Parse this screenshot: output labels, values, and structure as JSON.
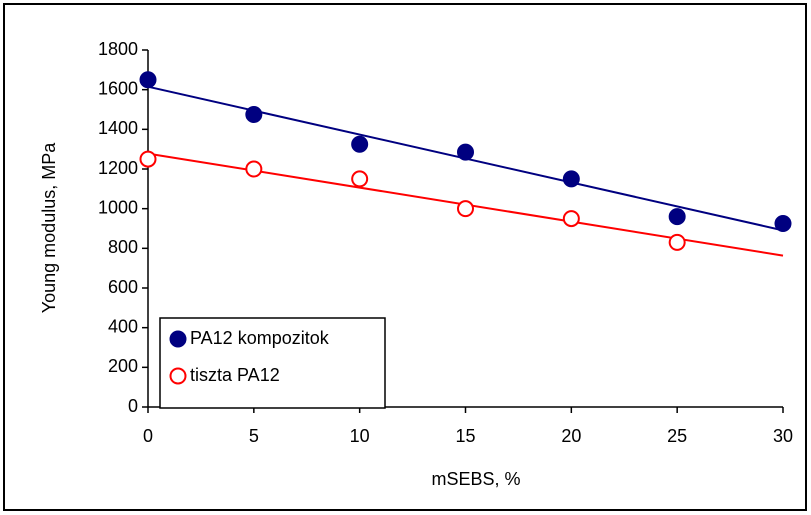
{
  "chart_data": {
    "type": "scatter",
    "x_label": "mSEBS, %",
    "y_label": "Young modulus, MPa",
    "xlim": [
      0,
      30
    ],
    "xticks": [
      0,
      5,
      10,
      15,
      20,
      25,
      30
    ],
    "ylim": [
      0,
      1800
    ],
    "yticks": [
      0,
      200,
      400,
      600,
      800,
      1000,
      1200,
      1400,
      1600,
      1800
    ],
    "grid": false,
    "legend": "lower left",
    "trendline": "linear",
    "series": [
      {
        "name": "PA12 kompozitok",
        "color": "#000080",
        "filled": true,
        "x": [
          0,
          5,
          10,
          15,
          20,
          25,
          30
        ],
        "values": [
          1650,
          1475,
          1325,
          1285,
          1150,
          960,
          925
        ]
      },
      {
        "name": "tiszta PA12",
        "color": "#ff0000",
        "filled": false,
        "x": [
          0,
          5,
          10,
          15,
          20,
          25
        ],
        "values": [
          1250,
          1200,
          1150,
          1000,
          950,
          830
        ]
      }
    ]
  }
}
